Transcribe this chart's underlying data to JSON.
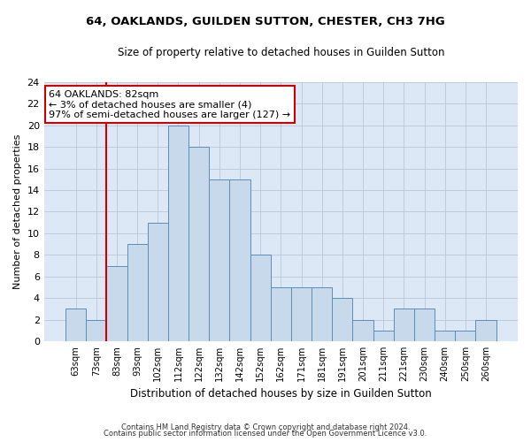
{
  "title1": "64, OAKLANDS, GUILDEN SUTTON, CHESTER, CH3 7HG",
  "title2": "Size of property relative to detached houses in Guilden Sutton",
  "xlabel": "Distribution of detached houses by size in Guilden Sutton",
  "ylabel": "Number of detached properties",
  "categories": [
    "63sqm",
    "73sqm",
    "83sqm",
    "93sqm",
    "102sqm",
    "112sqm",
    "122sqm",
    "132sqm",
    "142sqm",
    "152sqm",
    "162sqm",
    "171sqm",
    "181sqm",
    "191sqm",
    "201sqm",
    "211sqm",
    "221sqm",
    "230sqm",
    "240sqm",
    "250sqm",
    "260sqm"
  ],
  "values": [
    3,
    2,
    7,
    9,
    11,
    20,
    18,
    15,
    15,
    8,
    5,
    5,
    5,
    4,
    2,
    1,
    3,
    3,
    1,
    1,
    2
  ],
  "bar_color": "#c9d9ec",
  "bar_edge_color": "#5b8db8",
  "vline_color": "#cc0000",
  "annotation_text": "64 OAKLANDS: 82sqm\n← 3% of detached houses are smaller (4)\n97% of semi-detached houses are larger (127) →",
  "annotation_box_color": "white",
  "annotation_box_edge_color": "#cc0000",
  "ylim": [
    0,
    24
  ],
  "yticks": [
    0,
    2,
    4,
    6,
    8,
    10,
    12,
    14,
    16,
    18,
    20,
    22,
    24
  ],
  "footer1": "Contains HM Land Registry data © Crown copyright and database right 2024.",
  "footer2": "Contains public sector information licensed under the Open Government Licence v3.0.",
  "bg_color": "#dce8f5"
}
